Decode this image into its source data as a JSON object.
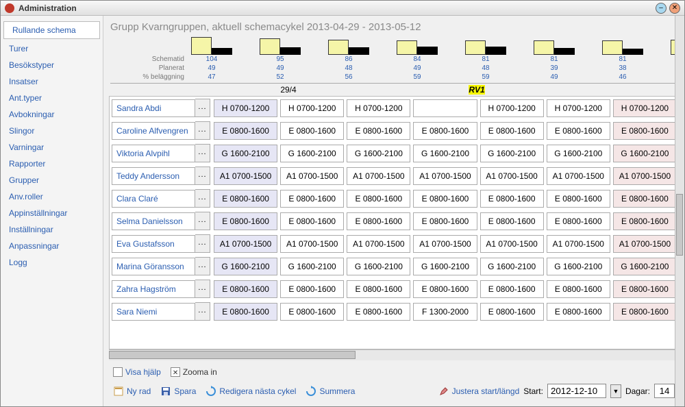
{
  "window": {
    "title": "Administration"
  },
  "sidebar": {
    "items": [
      {
        "label": "Rullande schema",
        "selected": true
      },
      {
        "label": "Turer"
      },
      {
        "label": "Besökstyper"
      },
      {
        "label": "Insatser"
      },
      {
        "label": "Ant.typer"
      },
      {
        "label": "Avbokningar"
      },
      {
        "label": "Slingor"
      },
      {
        "label": "Varningar"
      },
      {
        "label": "Rapporter"
      },
      {
        "label": "Grupper"
      },
      {
        "label": "Anv.roller"
      },
      {
        "label": "Appinställningar"
      },
      {
        "label": "Inställningar"
      },
      {
        "label": "Anpassningar"
      },
      {
        "label": "Logg"
      }
    ]
  },
  "header": {
    "title": "Grupp Kvarngruppen, aktuell schemacykel 2013-04-29 - 2013-05-12"
  },
  "chart": {
    "label_schematid": "Schematid",
    "label_planerat": "Planerat",
    "label_belaggning": "% beläggning",
    "cols": [
      {
        "schematid": "104",
        "planerat": "49",
        "belaggning": "47",
        "h1": 26,
        "h2": 10
      },
      {
        "schematid": "95",
        "planerat": "49",
        "belaggning": "52",
        "h1": 24,
        "h2": 11
      },
      {
        "schematid": "86",
        "planerat": "48",
        "belaggning": "56",
        "h1": 22,
        "h2": 11
      },
      {
        "schematid": "84",
        "planerat": "49",
        "belaggning": "59",
        "h1": 21,
        "h2": 12
      },
      {
        "schematid": "81",
        "planerat": "48",
        "belaggning": "59",
        "h1": 21,
        "h2": 12
      },
      {
        "schematid": "81",
        "planerat": "39",
        "belaggning": "49",
        "h1": 21,
        "h2": 10
      },
      {
        "schematid": "81",
        "planerat": "38",
        "belaggning": "46",
        "h1": 21,
        "h2": 9
      }
    ]
  },
  "date_header": {
    "col1": "29/4",
    "highlight": "RV1"
  },
  "shift_templates": {
    "H": "H 0700-1200",
    "E": "E 0800-1600",
    "G": "G 1600-2100",
    "A1": "A1 0700-1500",
    "F": "F 1300-2000"
  },
  "rows": [
    {
      "name": "Sandra Abdi",
      "cells": [
        "H",
        "H",
        "H",
        "",
        "H",
        "H",
        "H"
      ]
    },
    {
      "name": "Caroline Alfvengren",
      "cells": [
        "E",
        "E",
        "E",
        "E",
        "E",
        "E",
        "E"
      ]
    },
    {
      "name": "Viktoria Alvpihl",
      "cells": [
        "G",
        "G",
        "G",
        "G",
        "G",
        "G",
        "G"
      ]
    },
    {
      "name": "Teddy Andersson",
      "cells": [
        "A1",
        "A1",
        "A1",
        "A1",
        "A1",
        "A1",
        "A1"
      ]
    },
    {
      "name": "Clara Claré",
      "cells": [
        "E",
        "E",
        "E",
        "E",
        "E",
        "E",
        "E"
      ]
    },
    {
      "name": "Selma Danielsson",
      "cells": [
        "E",
        "E",
        "E",
        "E",
        "E",
        "E",
        "E"
      ]
    },
    {
      "name": "Eva Gustafsson",
      "cells": [
        "A1",
        "A1",
        "A1",
        "A1",
        "A1",
        "A1",
        "A1"
      ]
    },
    {
      "name": "Marina Göransson",
      "cells": [
        "G",
        "G",
        "G",
        "G",
        "G",
        "G",
        "G"
      ]
    },
    {
      "name": "Zahra Hagström",
      "cells": [
        "E",
        "E",
        "E",
        "E",
        "E",
        "E",
        "E"
      ]
    },
    {
      "name": "Sara Niemi",
      "cells": [
        "E",
        "E",
        "E",
        "F",
        "E",
        "E",
        "E"
      ]
    }
  ],
  "footer": {
    "visa_hjalp": "Visa hjälp",
    "zooma_in": "Zooma in",
    "ny_rad": "Ny rad",
    "spara": "Spara",
    "redigera": "Redigera nästa cykel",
    "summera": "Summera",
    "justera": "Justera start/längd",
    "start_label": "Start:",
    "start_value": "2012-12-10",
    "dagar_label": "Dagar:",
    "dagar_value": "14"
  },
  "colors": {
    "link": "#2a5db0",
    "col0_bg": "#e6e6f5",
    "lastcol_bg": "#f5e6e6",
    "highlight_bg": "#f5f500"
  }
}
